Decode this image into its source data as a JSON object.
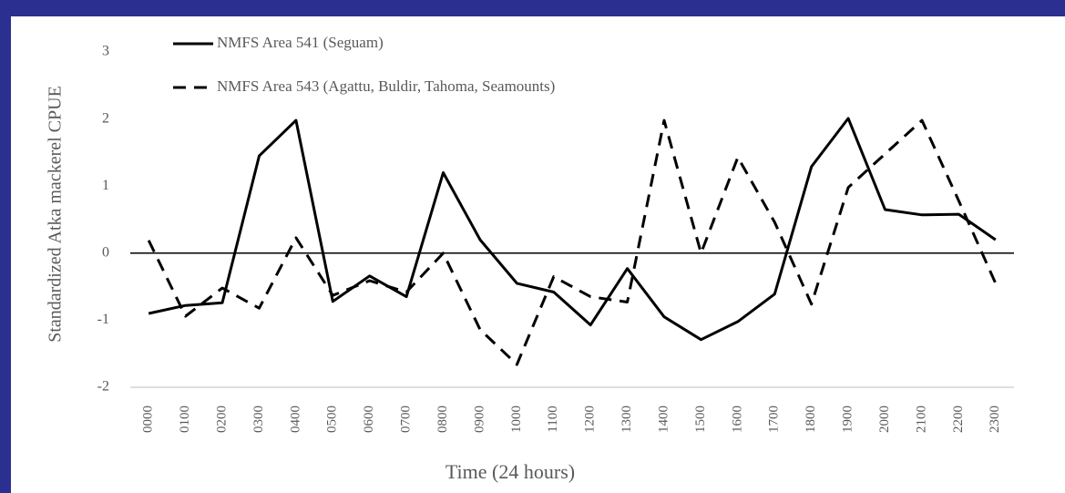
{
  "chart_data": {
    "type": "line",
    "y_label": "Standardized Atka mackerel CPUE",
    "x_label": "Time (24 hours)",
    "categories": [
      "0000",
      "0100",
      "0200",
      "0300",
      "0400",
      "0500",
      "0600",
      "0700",
      "0800",
      "0900",
      "1000",
      "1100",
      "1200",
      "1300",
      "1400",
      "1500",
      "1600",
      "1700",
      "1800",
      "1900",
      "2000",
      "2100",
      "2200",
      "2300"
    ],
    "series": [
      {
        "name": "NMFS Area 541 (Seguam)",
        "color": "#000000",
        "dashed": false,
        "values": [
          -0.9,
          -0.78,
          -0.74,
          1.45,
          1.98,
          -0.72,
          -0.34,
          -0.65,
          1.2,
          0.2,
          -0.45,
          -0.58,
          -1.07,
          -0.23,
          -0.95,
          -1.29,
          -1.02,
          -0.61,
          1.29,
          2.01,
          0.65,
          0.57,
          0.58,
          0.2
        ]
      },
      {
        "name": "NMFS Area 543 (Agattu, Buldir, Tahoma, Seamounts)",
        "color": "#000000",
        "dashed": true,
        "values": [
          0.19,
          -0.94,
          -0.52,
          -0.82,
          0.23,
          -0.63,
          -0.41,
          -0.58,
          0,
          -1.14,
          -1.66,
          -0.35,
          -0.65,
          -0.73,
          1.98,
          0,
          1.43,
          0.46,
          -0.76,
          0.98,
          1.48,
          1.98,
          0.78,
          -0.45
        ]
      }
    ],
    "ylim": [
      -2,
      3
    ],
    "yticks": [
      -2,
      -1,
      0,
      1,
      2,
      3
    ],
    "grid": false,
    "legend": "top-left"
  }
}
